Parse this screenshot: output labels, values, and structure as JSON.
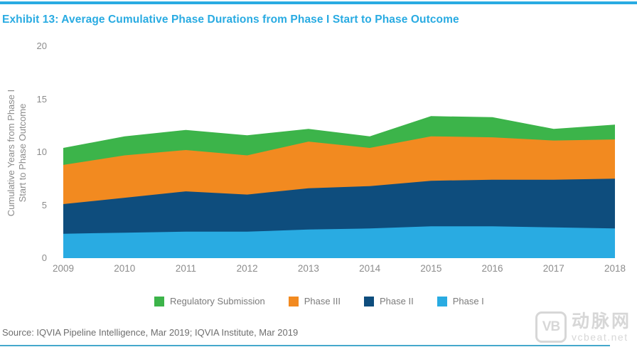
{
  "page": {
    "title": "Exhibit 13: Average Cumulative Phase Durations from Phase I Start to Phase Outcome"
  },
  "chart_data": {
    "type": "area",
    "stacked": true,
    "title": "Exhibit 13: Average Cumulative Phase Durations from Phase I Start to Phase Outcome",
    "categories": [
      "2009",
      "2010",
      "2011",
      "2012",
      "2013",
      "2014",
      "2015",
      "2016",
      "2017",
      "2018"
    ],
    "xlabel": "",
    "ylabel": "Cumulative Years from Phase I Start to Phase Outcome",
    "ylabel_lines": [
      "Cumulative Years from Phase I",
      "Start to Phase Outcome"
    ],
    "ylim": [
      0,
      20
    ],
    "yticks": [
      0,
      5,
      10,
      15,
      20
    ],
    "grid": false,
    "legend_position": "bottom",
    "values_are_cumulative_stack_tops": true,
    "series": [
      {
        "name": "Phase I",
        "color": "#29ABE2",
        "cumulative": [
          2.3,
          2.4,
          2.5,
          2.5,
          2.7,
          2.8,
          3.0,
          3.0,
          2.9,
          2.8
        ],
        "values": [
          2.3,
          2.4,
          2.5,
          2.5,
          2.7,
          2.8,
          3.0,
          3.0,
          2.9,
          2.8
        ]
      },
      {
        "name": "Phase II",
        "color": "#0E4D7D",
        "cumulative": [
          5.1,
          5.7,
          6.3,
          6.0,
          6.6,
          6.8,
          7.3,
          7.4,
          7.4,
          7.5
        ],
        "values": [
          2.8,
          3.3,
          3.8,
          3.5,
          3.9,
          4.0,
          4.3,
          4.4,
          4.5,
          4.7
        ]
      },
      {
        "name": "Phase III",
        "color": "#F28A20",
        "cumulative": [
          8.8,
          9.7,
          10.2,
          9.7,
          11.0,
          10.4,
          11.5,
          11.4,
          11.1,
          11.2
        ],
        "values": [
          3.7,
          4.0,
          3.9,
          3.7,
          4.4,
          3.6,
          4.2,
          4.0,
          3.7,
          3.7
        ]
      },
      {
        "name": "Regulatory Submission",
        "color": "#3CB44A",
        "cumulative": [
          10.4,
          11.5,
          12.1,
          11.6,
          12.2,
          11.5,
          13.4,
          13.3,
          12.2,
          12.6
        ],
        "values": [
          1.6,
          1.8,
          1.9,
          1.9,
          1.2,
          1.1,
          1.9,
          1.9,
          1.1,
          1.4
        ]
      }
    ],
    "legend_order": [
      "Regulatory Submission",
      "Phase III",
      "Phase II",
      "Phase I"
    ]
  },
  "footer": {
    "source": "Source: IQVIA Pipeline Intelligence, Mar 2019; IQVIA Institute, Mar 2019"
  },
  "watermark": {
    "logo_text": "VB",
    "name_cn": "动脉网",
    "site": "vcbeat.net"
  },
  "colors": {
    "accent": "#29ABE2",
    "axis_text": "#8C8C8C",
    "legend_text": "#7B7B7B",
    "source_text": "#6E6E6E",
    "watermark": "#D7D7D7"
  }
}
